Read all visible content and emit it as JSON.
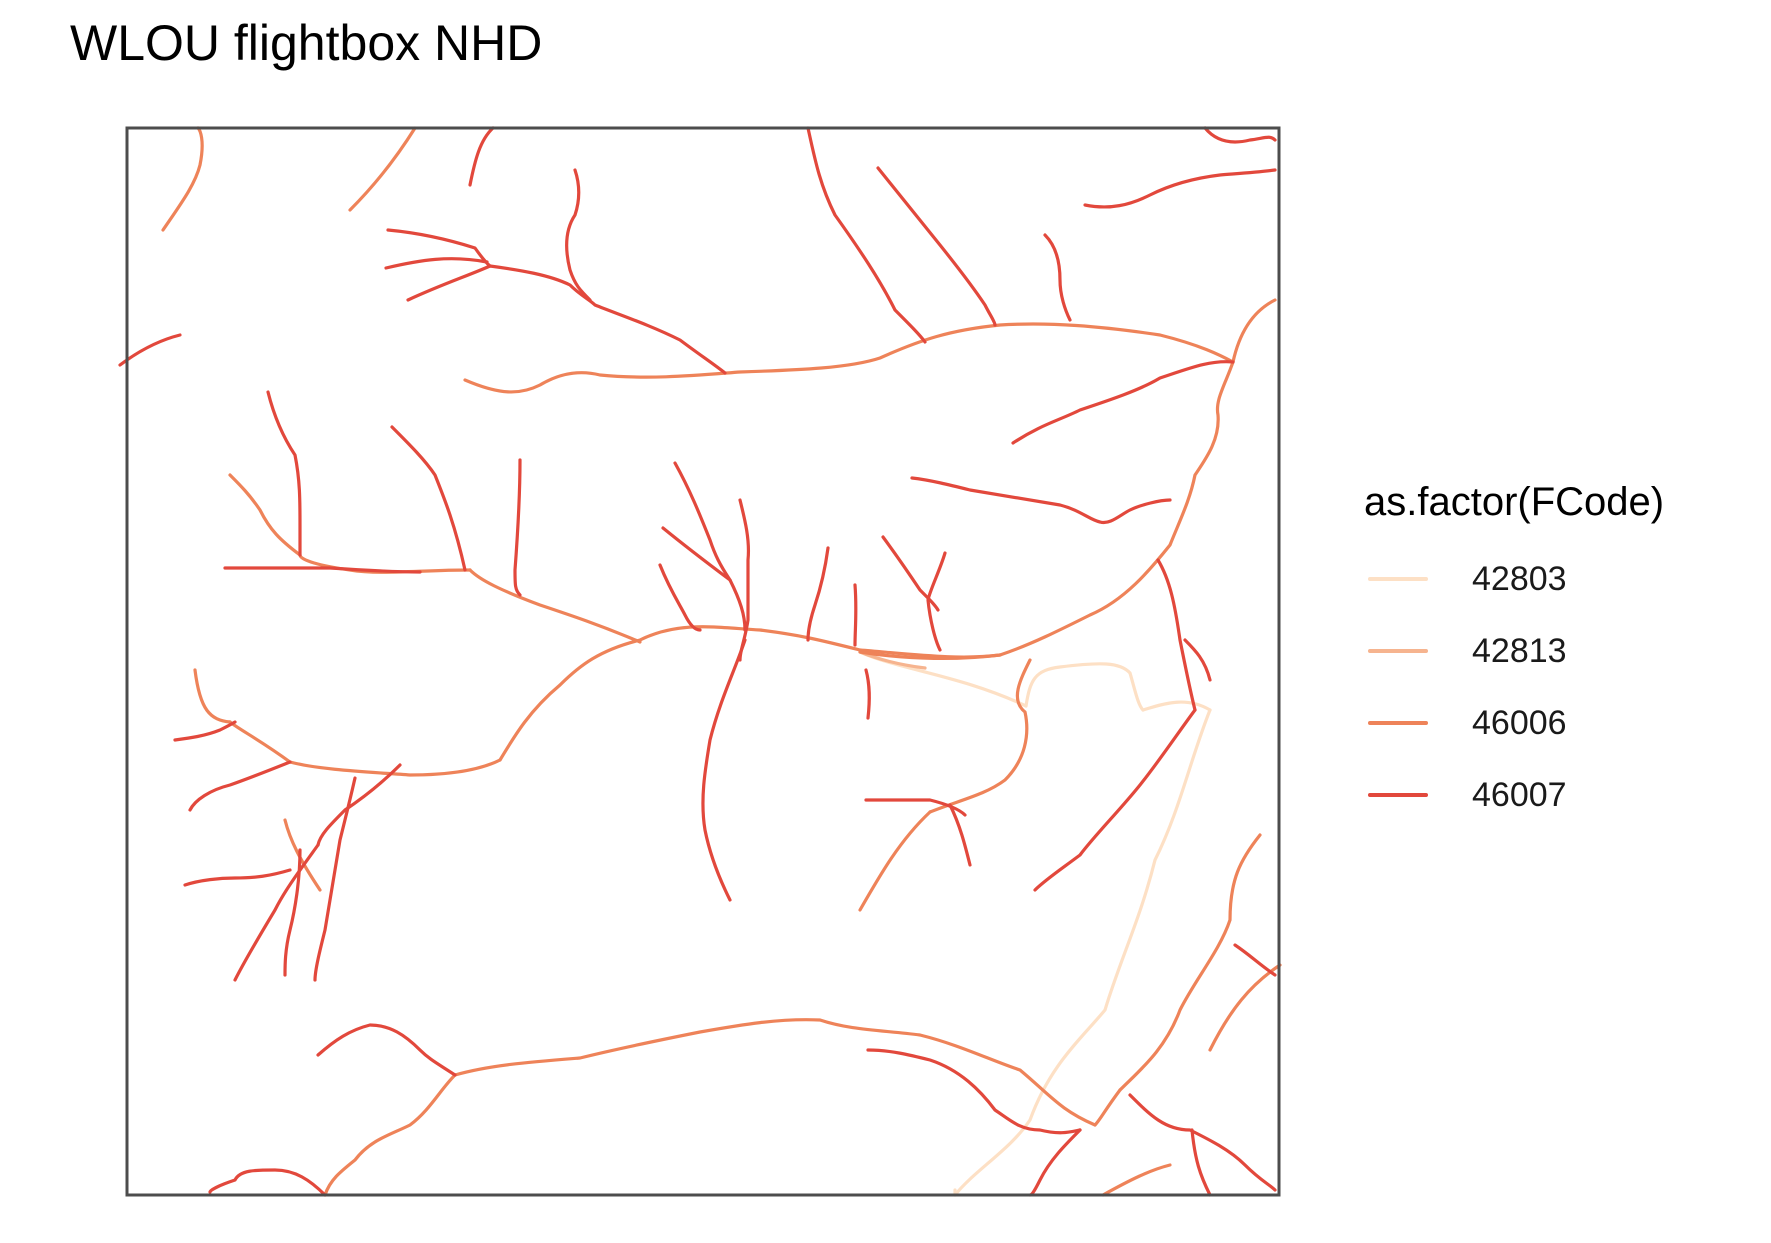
{
  "title": "WLOU flightbox NHD",
  "legend": {
    "title": "as.factor(FCode)",
    "items": [
      {
        "label": "42803",
        "color": "#fde0c5"
      },
      {
        "label": "42813",
        "color": "#f6b48f"
      },
      {
        "label": "46006",
        "color": "#ee8359"
      },
      {
        "label": "46007",
        "color": "#e2483c"
      }
    ]
  }
}
